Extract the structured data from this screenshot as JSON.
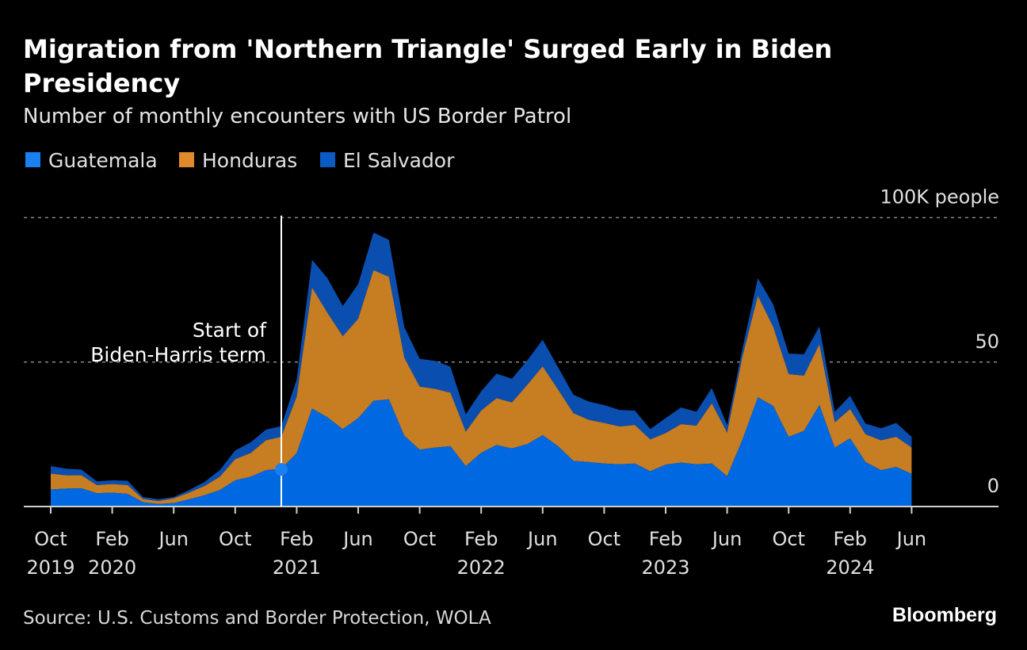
{
  "title_line1": "Migration from 'Northern Triangle' Surged Early in Biden",
  "title_line2": "Presidency",
  "subtitle": "Number of monthly encounters with US Border Patrol",
  "source": "Source: U.S. Customs and Border Protection, WOLA",
  "brand": "Bloomberg",
  "chart_data": {
    "type": "area",
    "stacked": true,
    "title": "Migration from 'Northern Triangle' Surged Early in Biden Presidency",
    "subtitle": "Number of monthly encounters with US Border Patrol",
    "x_start": "2019-10",
    "x_end": "2024-06",
    "x_tick_labels": [
      {
        "month": "Oct",
        "year": "2019",
        "index": 0
      },
      {
        "month": "Feb",
        "year": "2020",
        "index": 4
      },
      {
        "month": "Jun",
        "year": "",
        "index": 8
      },
      {
        "month": "Oct",
        "year": "",
        "index": 12
      },
      {
        "month": "Feb",
        "year": "2021",
        "index": 16
      },
      {
        "month": "Jun",
        "year": "",
        "index": 20
      },
      {
        "month": "Oct",
        "year": "",
        "index": 24
      },
      {
        "month": "Feb",
        "year": "2022",
        "index": 28
      },
      {
        "month": "Jun",
        "year": "",
        "index": 32
      },
      {
        "month": "Oct",
        "year": "",
        "index": 36
      },
      {
        "month": "Feb",
        "year": "2023",
        "index": 40
      },
      {
        "month": "Jun",
        "year": "",
        "index": 44
      },
      {
        "month": "Oct",
        "year": "",
        "index": 48
      },
      {
        "month": "Feb",
        "year": "2024",
        "index": 52
      },
      {
        "month": "Jun",
        "year": "",
        "index": 56
      }
    ],
    "y_unit": "thousands of people",
    "ylim": [
      0,
      100
    ],
    "y_ticks": [
      {
        "value": 0,
        "label": "0"
      },
      {
        "value": 50,
        "label": "50"
      },
      {
        "value": 100,
        "label": "100K people"
      }
    ],
    "grid": "dotted horizontal at 50 and 100",
    "legend_position": "top-left",
    "series": [
      {
        "name": "Guatemala",
        "color": "#0068e0",
        "legend_color": "#1a7ff0",
        "values": [
          5.9,
          6.2,
          6.3,
          4.6,
          4.8,
          4.4,
          1.5,
          0.9,
          1.2,
          2.5,
          3.9,
          5.7,
          9.1,
          10.3,
          12.6,
          13.1,
          18.5,
          33.9,
          30.9,
          26.8,
          30.6,
          36.6,
          37.1,
          24.5,
          19.7,
          20.4,
          20.9,
          14.0,
          18.6,
          21.3,
          20.1,
          21.6,
          24.7,
          20.9,
          15.8,
          15.4,
          14.9,
          14.6,
          14.9,
          12.2,
          14.5,
          15.2,
          14.6,
          14.9,
          10.5,
          23.2,
          37.8,
          34.8,
          24.1,
          26.2,
          35.1,
          20.4,
          23.6,
          15.4,
          12.6,
          13.7,
          11.3
        ]
      },
      {
        "name": "Honduras",
        "color": "#c77d22",
        "legend_color": "#e08a2c",
        "values": [
          5.5,
          4.6,
          4.5,
          2.8,
          3.0,
          3.0,
          1.1,
          1.0,
          1.6,
          2.3,
          3.2,
          4.6,
          7.3,
          8.2,
          10.3,
          11.0,
          19.5,
          41.9,
          36.1,
          32.1,
          34.4,
          45.2,
          42.4,
          27.0,
          21.8,
          20.3,
          18.5,
          11.9,
          14.6,
          16.2,
          15.9,
          20.5,
          23.8,
          19.6,
          16.5,
          14.6,
          14.0,
          13.1,
          13.3,
          11.0,
          10.9,
          13.3,
          13.4,
          20.8,
          15.1,
          28.8,
          35.1,
          27.3,
          21.7,
          19.1,
          21.0,
          8.7,
          10.1,
          9.6,
          10.3,
          10.4,
          9.1
        ]
      },
      {
        "name": "El Salvador",
        "color": "#0a4fb0",
        "legend_color": "#0b5bc4",
        "values": [
          2.6,
          2.3,
          2.0,
          1.3,
          1.3,
          1.5,
          0.7,
          0.6,
          0.5,
          0.9,
          1.4,
          2.3,
          3.0,
          3.7,
          3.7,
          3.7,
          6.0,
          9.6,
          12.0,
          10.5,
          12.0,
          13.0,
          12.8,
          10.6,
          9.6,
          9.7,
          9.0,
          6.0,
          6.7,
          8.5,
          8.2,
          8.5,
          9.2,
          7.7,
          6.4,
          6.3,
          6.2,
          5.7,
          5.0,
          3.6,
          5.2,
          5.8,
          4.8,
          5.3,
          2.6,
          2.8,
          6.1,
          7.8,
          7.1,
          7.4,
          6.2,
          3.7,
          4.6,
          3.7,
          4.2,
          4.8,
          3.7
        ]
      }
    ],
    "annotations": [
      {
        "at": "2021-01",
        "line1": "Start of",
        "line2": "Biden-Harris term",
        "marker_color": "#1a7ff0"
      }
    ]
  }
}
